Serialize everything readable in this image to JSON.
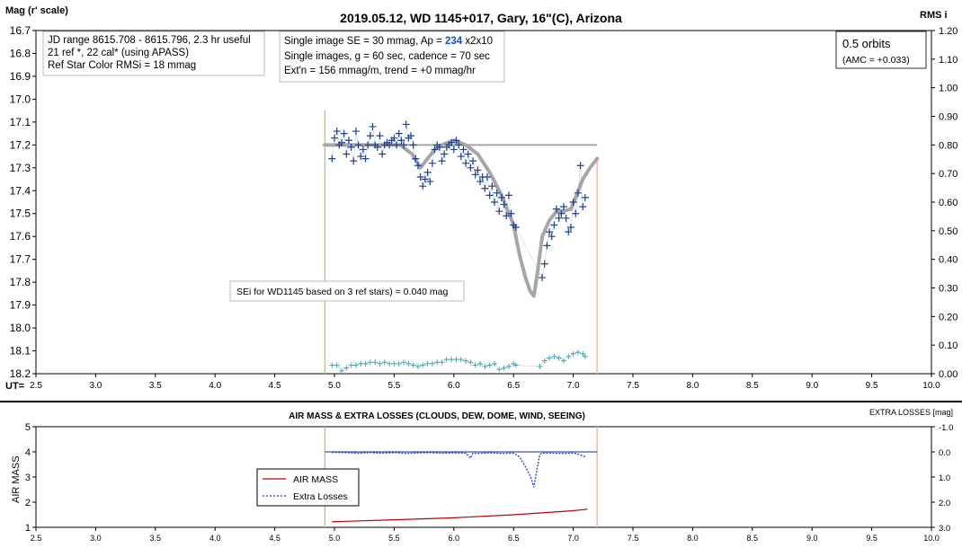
{
  "top_panel": {
    "title": "2019.05.12, WD 1145+017, Gary, 16\"(C), Arizona",
    "y_label": "Mag (r' scale)",
    "y2_label": "RMS i",
    "x_label": "UT=",
    "y_ticks": [
      "16.7",
      "16.8",
      "16.9",
      "17.0",
      "17.1",
      "17.2",
      "17.3",
      "17.4",
      "17.5",
      "17.6",
      "17.7",
      "17.8",
      "17.9",
      "18.0",
      "18.1",
      "18.2"
    ],
    "y2_ticks": [
      "1.20",
      "1.10",
      "1.00",
      "0.90",
      "0.80",
      "0.70",
      "0.60",
      "0.50",
      "0.40",
      "0.30",
      "0.20",
      "0.10",
      "0.00"
    ],
    "x_ticks": [
      "2.5",
      "3.0",
      "3.5",
      "4.0",
      "4.5",
      "5.0",
      "5.5",
      "6.0",
      "6.5",
      "7.0",
      "7.5",
      "8.0",
      "8.5",
      "9.0",
      "9.5",
      "10.0"
    ],
    "info_box_1": [
      "JD range 8615.708 - 8615.796, 2.3 hr useful",
      "21 ref *, 22 cal* (using APASS)",
      "Ref Star Color RMSi = 18 mmag"
    ],
    "info_box_2": {
      "line1_prefix": "Single image SE = 30 mmag, Ap = ",
      "line1_ap": "234",
      "line1_suffix": " x2x10",
      "line2": "Single images, g = 60 sec, cadence = 70 sec",
      "line3": "Ext'n = 156 mmag/m, trend = +0 mmag/hr"
    },
    "orbits_box": {
      "line1": "0.5 orbits",
      "line2": "(AMC = +0.033)"
    },
    "sei_note": "SEi for WD1145 based on 3 ref stars) = 0.040 mag",
    "colors": {
      "data": "#1f3f8f",
      "model": "#a6a6a6",
      "rms": "#4aa3ad",
      "start_line": "#a9d18e",
      "end_line": "#f4b6b0"
    }
  },
  "bottom_panel": {
    "title": "AIR MASS & EXTRA LOSSES (CLOUDS, DEW, DOME, WIND, SEEING)",
    "y_label": "AIR MASS",
    "y2_label": "EXTRA LOSSES [mag]",
    "y_ticks": [
      "5",
      "4",
      "3",
      "2",
      "1"
    ],
    "y2_ticks": [
      "-1.0",
      "0.0",
      "1.0",
      "2.0",
      "3.0"
    ],
    "x_ticks": [
      "2.5",
      "3.0",
      "3.5",
      "4.0",
      "4.5",
      "5.0",
      "5.5",
      "6.0",
      "6.5",
      "7.0",
      "7.5",
      "8.0",
      "8.5",
      "9.0",
      "9.5",
      "10.0"
    ],
    "legend": [
      {
        "label": "AIR MASS",
        "color": "#c00000"
      },
      {
        "label": "Extra Losses",
        "color": "#1f3fbf"
      }
    ]
  },
  "chart_data": [
    {
      "type": "scatter",
      "title": "2019.05.12, WD 1145+017, Gary, 16\"(C), Arizona",
      "xlabel": "UT=",
      "ylabel": "Mag (r' scale)",
      "y2label": "RMS i",
      "xlim": [
        2.5,
        10.0
      ],
      "ylim": [
        18.2,
        16.7
      ],
      "y2lim": [
        0.0,
        1.2
      ],
      "vlines": [
        4.92,
        7.2
      ],
      "reference_mag": 17.2,
      "reference_range": [
        4.9,
        7.2
      ],
      "series": [
        {
          "name": "",
          "kind": "points",
          "x": [
            4.98,
            5.0,
            5.02,
            5.04,
            5.06,
            5.08,
            5.1,
            5.12,
            5.14,
            5.16,
            5.18,
            5.2,
            5.22,
            5.24,
            5.26,
            5.28,
            5.3,
            5.32,
            5.34,
            5.36,
            5.38,
            5.4,
            5.42,
            5.44,
            5.46,
            5.48,
            5.5,
            5.52,
            5.54,
            5.56,
            5.58,
            5.6,
            5.62,
            5.64,
            5.66,
            5.68,
            5.7,
            5.72,
            5.74,
            5.76,
            5.78,
            5.8,
            5.82,
            5.84,
            5.86,
            5.88,
            5.9,
            5.92,
            5.94,
            5.96,
            5.98,
            6.0,
            6.02,
            6.04,
            6.06,
            6.08,
            6.1,
            6.12,
            6.14,
            6.16,
            6.18,
            6.2,
            6.22,
            6.24,
            6.26,
            6.28,
            6.3,
            6.32,
            6.34,
            6.36,
            6.38,
            6.4,
            6.42,
            6.44,
            6.46,
            6.48,
            6.5,
            6.52,
            6.74,
            6.76,
            6.78,
            6.8,
            6.82,
            6.84,
            6.86,
            6.88,
            6.9,
            6.92,
            6.94,
            6.96,
            6.98,
            7.0,
            7.02,
            7.04,
            7.06,
            7.08,
            7.1
          ],
          "y": [
            17.26,
            17.17,
            17.14,
            17.2,
            17.19,
            17.15,
            17.24,
            17.18,
            17.21,
            17.27,
            17.14,
            17.2,
            17.25,
            17.22,
            17.26,
            17.2,
            17.16,
            17.12,
            17.2,
            17.21,
            17.16,
            17.24,
            17.2,
            17.19,
            17.2,
            17.18,
            17.17,
            17.2,
            17.15,
            17.18,
            17.2,
            17.11,
            17.17,
            17.16,
            17.2,
            17.26,
            17.29,
            17.34,
            17.38,
            17.35,
            17.32,
            17.36,
            17.28,
            17.22,
            17.2,
            17.21,
            17.27,
            17.24,
            17.21,
            17.2,
            17.19,
            17.22,
            17.18,
            17.2,
            17.25,
            17.22,
            17.28,
            17.24,
            17.3,
            17.27,
            17.33,
            17.31,
            17.36,
            17.34,
            17.39,
            17.34,
            17.42,
            17.38,
            17.45,
            17.41,
            17.49,
            17.43,
            17.46,
            17.51,
            17.42,
            17.5,
            17.55,
            17.56,
            17.78,
            17.72,
            17.64,
            17.58,
            17.6,
            17.55,
            17.48,
            17.52,
            17.5,
            17.47,
            17.52,
            17.58,
            17.56,
            17.45,
            17.5,
            17.41,
            17.29,
            17.47,
            17.43
          ]
        },
        {
          "name": "",
          "kind": "model_line",
          "x": [
            4.92,
            5.3,
            5.55,
            5.65,
            5.72,
            5.78,
            5.84,
            5.9,
            5.95,
            6.0,
            6.1,
            6.2,
            6.3,
            6.4,
            6.5,
            6.55,
            6.6,
            6.64,
            6.67,
            6.7,
            6.74,
            6.8,
            6.86,
            6.92,
            6.98,
            7.02,
            7.08,
            7.14,
            7.2
          ],
          "y": [
            17.2,
            17.2,
            17.2,
            17.24,
            17.3,
            17.26,
            17.22,
            17.2,
            17.19,
            17.18,
            17.2,
            17.24,
            17.32,
            17.42,
            17.55,
            17.68,
            17.78,
            17.84,
            17.86,
            17.76,
            17.6,
            17.53,
            17.49,
            17.49,
            17.48,
            17.43,
            17.35,
            17.3,
            17.26
          ]
        },
        {
          "name": "",
          "kind": "rms_y2",
          "x": [
            4.98,
            5.02,
            5.06,
            5.1,
            5.14,
            5.18,
            5.22,
            5.26,
            5.3,
            5.34,
            5.38,
            5.42,
            5.46,
            5.5,
            5.54,
            5.58,
            5.62,
            5.66,
            5.7,
            5.74,
            5.78,
            5.82,
            5.86,
            5.9,
            5.94,
            5.98,
            6.02,
            6.06,
            6.1,
            6.14,
            6.18,
            6.22,
            6.26,
            6.3,
            6.34,
            6.38,
            6.42,
            6.46,
            6.5,
            6.52,
            6.72,
            6.76,
            6.8,
            6.84,
            6.88,
            6.92,
            6.96,
            7.0,
            7.04,
            7.08,
            7.1
          ],
          "y": [
            0.03,
            0.03,
            0.01,
            0.02,
            0.03,
            0.03,
            0.035,
            0.035,
            0.04,
            0.04,
            0.035,
            0.04,
            0.035,
            0.035,
            0.035,
            0.04,
            0.035,
            0.03,
            0.025,
            0.03,
            0.035,
            0.035,
            0.04,
            0.04,
            0.05,
            0.05,
            0.05,
            0.05,
            0.045,
            0.04,
            0.03,
            0.035,
            0.025,
            0.03,
            0.035,
            0.015,
            0.02,
            0.025,
            0.035,
            0.03,
            0.025,
            0.045,
            0.055,
            0.06,
            0.055,
            0.045,
            0.06,
            0.07,
            0.075,
            0.07,
            0.06
          ]
        }
      ]
    },
    {
      "type": "line",
      "title": "AIR MASS & EXTRA LOSSES (CLOUDS, DEW, DOME, WIND, SEEING)",
      "xlabel": "",
      "ylabel": "AIR MASS",
      "y2label": "EXTRA LOSSES [mag]",
      "xlim": [
        2.5,
        10.0
      ],
      "ylim": [
        1,
        5
      ],
      "y2lim": [
        3.0,
        -1.0
      ],
      "vlines": [
        4.92,
        7.2
      ],
      "series": [
        {
          "name": "AIR MASS",
          "x": [
            4.98,
            5.5,
            6.0,
            6.5,
            7.0,
            7.12
          ],
          "y": [
            1.22,
            1.3,
            1.38,
            1.5,
            1.66,
            1.72
          ]
        },
        {
          "name": "Extra Losses",
          "axis": "y2",
          "x": [
            4.98,
            5.1,
            5.2,
            5.3,
            5.4,
            5.5,
            5.6,
            5.7,
            5.8,
            5.9,
            6.0,
            6.1,
            6.14,
            6.16,
            6.2,
            6.3,
            6.4,
            6.5,
            6.52,
            6.55,
            6.6,
            6.64,
            6.67,
            6.7,
            6.72,
            6.74,
            6.8,
            6.9,
            7.0,
            7.05,
            7.1
          ],
          "y": [
            0.02,
            0.03,
            0.05,
            0.03,
            0.05,
            0.03,
            0.06,
            0.04,
            0.03,
            0.05,
            0.04,
            0.05,
            0.25,
            0.05,
            0.06,
            0.04,
            0.06,
            0.05,
            0.1,
            0.2,
            0.6,
            0.95,
            1.4,
            0.6,
            0.1,
            0.05,
            0.05,
            0.06,
            0.05,
            0.1,
            0.2
          ]
        },
        {
          "name": "",
          "kind": "reference_line",
          "axis": "y2",
          "x": [
            4.92,
            7.2
          ],
          "y": [
            0.0,
            0.0
          ]
        }
      ]
    }
  ]
}
